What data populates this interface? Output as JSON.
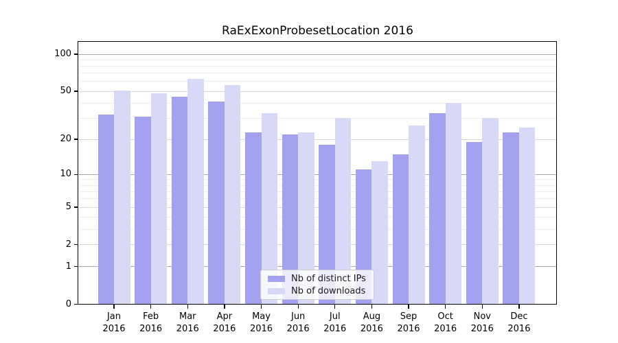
{
  "title": "RaExExonProbesetLocation 2016",
  "chart_data": {
    "type": "bar",
    "title": "RaExExonProbesetLocation 2016",
    "categories": [
      "Jan",
      "Feb",
      "Mar",
      "Apr",
      "May",
      "Jun",
      "Jul",
      "Aug",
      "Sep",
      "Oct",
      "Nov",
      "Dec"
    ],
    "x_tick_year": "2016",
    "series": [
      {
        "name": "Nb of distinct IPs",
        "color": "#a2a2f0",
        "values": [
          32,
          31,
          45,
          41,
          23,
          22,
          18,
          11,
          15,
          33,
          19,
          23
        ]
      },
      {
        "name": "Nb of downloads",
        "color": "#d8d8f7",
        "values": [
          51,
          48,
          63,
          56,
          33,
          23,
          30,
          13,
          26,
          40,
          30,
          25
        ]
      }
    ],
    "y_scale": "log1p",
    "y_axis_ticks": [
      0,
      1,
      2,
      5,
      10,
      20,
      50,
      100
    ],
    "y_axis_tick_labels": [
      "0",
      "1",
      "2",
      "5",
      "10",
      "20",
      "50",
      "100"
    ],
    "y_minor_ticks": [
      3,
      4,
      6,
      7,
      8,
      9,
      30,
      40,
      60,
      70,
      80,
      90
    ],
    "y_max": 126,
    "xlabel": "",
    "ylabel": "",
    "grid": true,
    "legend_position": "bottom-center"
  },
  "legend": {
    "entries": [
      "Nb of distinct IPs",
      "Nb of downloads"
    ]
  },
  "colors": {
    "bar_ips": "#a2a2f0",
    "bar_downloads": "#d8d8f7",
    "grid_decade": "#a8a8a8",
    "grid_labeled": "#d8d8d8",
    "grid_minor": "#eeeeee",
    "axis": "#000000",
    "background": "#ffffff",
    "legend_border": "#cccccc",
    "text": "#000000"
  }
}
